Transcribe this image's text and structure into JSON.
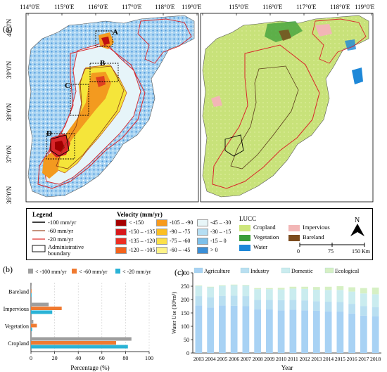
{
  "panel_labels": {
    "a": "(a)",
    "b": "(b)",
    "c": "(c)"
  },
  "map": {
    "top_lon_ticks_left": [
      "114°0'E",
      "115°0'E",
      "116°0'E",
      "117°0'E",
      "118°0'E",
      "119°0'E"
    ],
    "top_lon_ticks_right": [
      "114°0'E",
      "115°0'E",
      "116°0'E",
      "117°0'E",
      "118°0'E",
      "119°0'E"
    ],
    "lat_ticks": [
      "40°0'N",
      "39°0'N",
      "38°0'N",
      "37°0'N",
      "36°0'N"
    ],
    "region_labels": [
      "A",
      "B",
      "C",
      "D"
    ],
    "colors": {
      "water_blue": "#3d8fd8",
      "light_blue": "#a9d4f2",
      "cropland": "#c8e27a",
      "red_line": "#d9262a",
      "deep_red": "#a00000",
      "orange": "#f39a1f",
      "yellow": "#f5e53a"
    }
  },
  "legend": {
    "title": "Legend",
    "lines": [
      {
        "label": "-100 mm/yr",
        "color": "#000000"
      },
      {
        "label": "-60 mm/yr",
        "color": "#a0522d"
      },
      {
        "label": "-20 mm/yr",
        "color": "#e0312f"
      },
      {
        "label": "Administrative boundary",
        "color": "#000000"
      }
    ],
    "velocity_title": "Velocity (mm/yr)",
    "velocity_items": [
      {
        "label": "< -150",
        "color": "#a50000"
      },
      {
        "label": "-150 – -135",
        "color": "#d7191c"
      },
      {
        "label": "-135 – -120",
        "color": "#ec2e22"
      },
      {
        "label": "-120 – -105",
        "color": "#f4631c"
      },
      {
        "label": "-105 – -90",
        "color": "#f89a1c"
      },
      {
        "label": "-90 – -75",
        "color": "#fcbf22"
      },
      {
        "label": "-75 – -60",
        "color": "#fde048"
      },
      {
        "label": "-60 – -45",
        "color": "#fef388"
      },
      {
        "label": "-45 – -30",
        "color": "#e8f6f8"
      },
      {
        "label": "-30 – -15",
        "color": "#b5def3"
      },
      {
        "label": "-15 – 0",
        "color": "#7dc0ea"
      },
      {
        "label": "> 0",
        "color": "#3b8fd7"
      }
    ],
    "lucc_title": "LUCC",
    "lucc_items": [
      {
        "label": "Cropland",
        "color": "#cde67c"
      },
      {
        "label": "Impervious",
        "color": "#f2b6b6"
      },
      {
        "label": "Vegetation",
        "color": "#3a9e3a"
      },
      {
        "label": "Bareland",
        "color": "#7b4a1d"
      },
      {
        "label": "Water",
        "color": "#1e88d8"
      }
    ],
    "north": "N",
    "scale": [
      "0",
      "75",
      "150 Km"
    ]
  },
  "chart_data": [
    {
      "type": "bar",
      "orientation": "horizontal",
      "categories": [
        "Bareland",
        "Impervious",
        "Vegetation",
        "Cropland"
      ],
      "series": [
        {
          "name": "< -100 mm/yr",
          "color": "#9e9e9e",
          "values": [
            0.5,
            15,
            2,
            85
          ]
        },
        {
          "name": "< -60 mm/yr",
          "color": "#f07a30",
          "values": [
            0.5,
            26,
            5,
            72
          ]
        },
        {
          "name": "< -20 mm/yr",
          "color": "#2ab3d6",
          "values": [
            0.5,
            18,
            1,
            82
          ]
        }
      ],
      "xlabel": "Percentage (%)",
      "xticks": [
        "0",
        "20",
        "40",
        "60",
        "80",
        "100"
      ],
      "xlim": [
        0,
        100
      ]
    },
    {
      "type": "bar",
      "stacked": true,
      "categories": [
        "2003",
        "2004",
        "2005",
        "2006",
        "2007",
        "2008",
        "2009",
        "2010",
        "2011",
        "2012",
        "2013",
        "2014",
        "2015",
        "2016",
        "2017",
        "2018"
      ],
      "series": [
        {
          "name": "Agriculture",
          "color": "#a8d2f4",
          "values": [
            178,
            170,
            178,
            177,
            175,
            163,
            163,
            160,
            162,
            160,
            158,
            156,
            155,
            148,
            140,
            137
          ]
        },
        {
          "name": "Industry",
          "color": "#b9dff1",
          "values": [
            35,
            38,
            36,
            38,
            38,
            36,
            36,
            38,
            37,
            37,
            36,
            36,
            36,
            36,
            36,
            35
          ]
        },
        {
          "name": "Domestic",
          "color": "#caecef",
          "values": [
            38,
            38,
            38,
            39,
            40,
            40,
            40,
            40,
            42,
            43,
            43,
            44,
            45,
            46,
            47,
            48
          ]
        },
        {
          "name": "Ecological",
          "color": "#d6f0c4",
          "values": [
            2,
            2,
            2,
            2,
            2,
            4,
            4,
            6,
            7,
            8,
            10,
            12,
            14,
            16,
            20,
            25
          ]
        }
      ],
      "xlabel": "Year",
      "ylabel": "Water Use (10⁸m³)",
      "yticks": [
        "0",
        "50",
        "100",
        "150",
        "200",
        "250",
        "300"
      ],
      "ylim": [
        0,
        300
      ]
    }
  ]
}
